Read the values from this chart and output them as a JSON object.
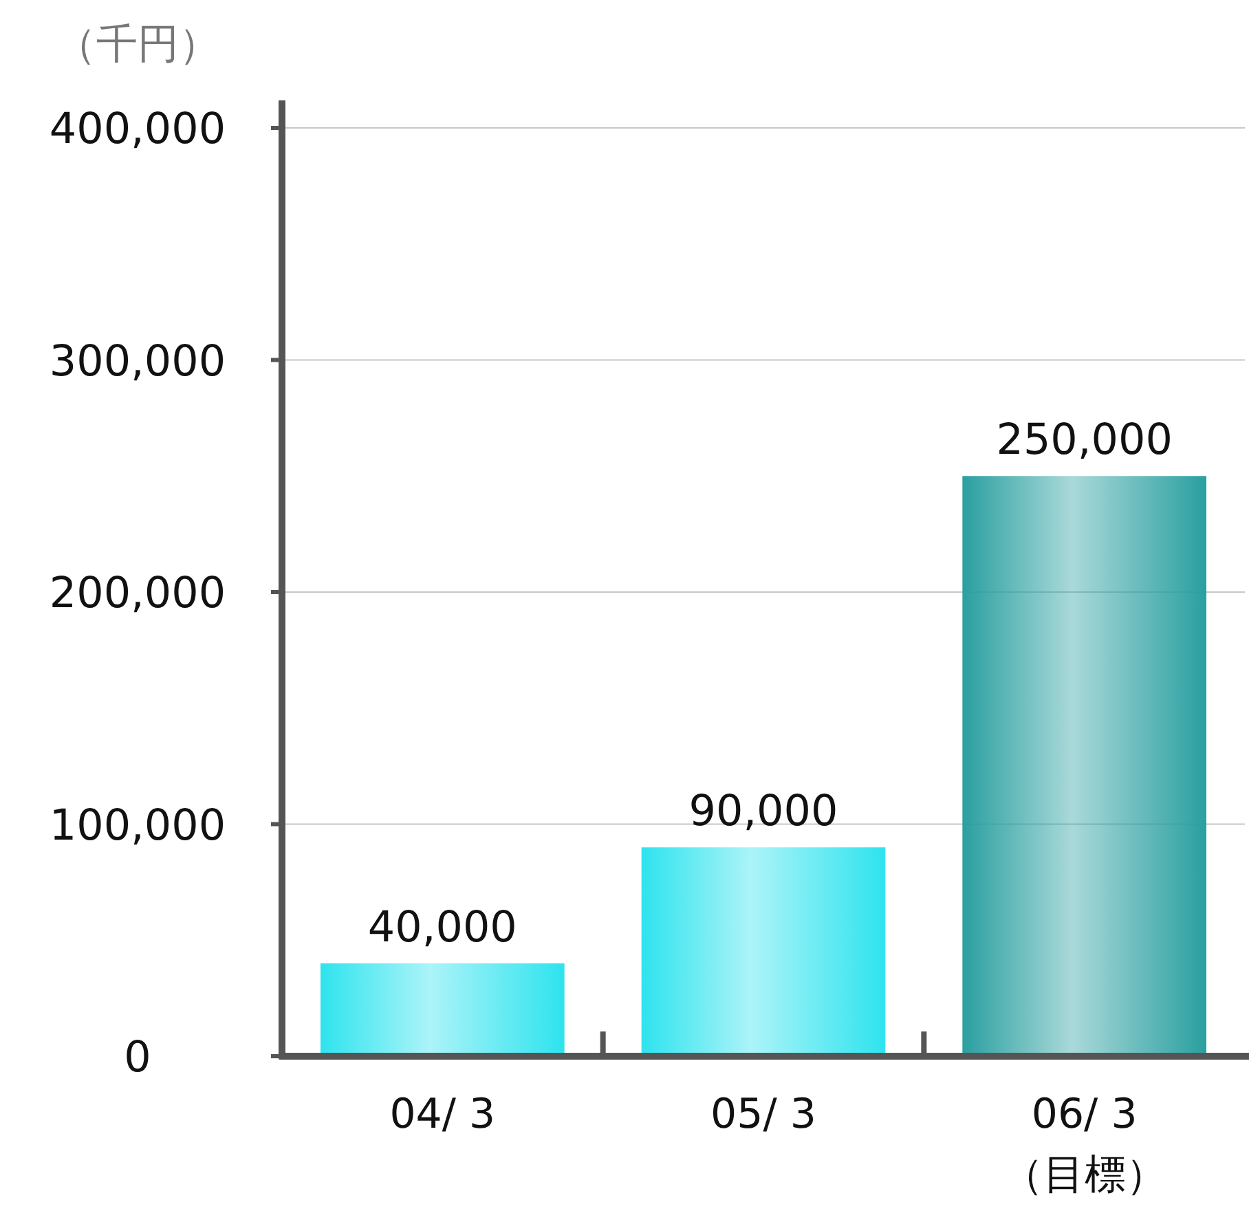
{
  "chart_data": {
    "type": "bar",
    "ylabel": "（千円）",
    "categories": [
      "04/ 3",
      "05/ 3",
      "06/ 3\n（目標）"
    ],
    "values": [
      40000,
      90000,
      250000
    ],
    "colors": [
      "#2ee3ee",
      "#2ee3ee",
      "#2a9fa0"
    ],
    "value_labels": [
      "40,000",
      "90,000",
      "250,000"
    ],
    "ylim": [
      0,
      400000
    ],
    "yticks": [
      0,
      {
        "value": 100000,
        "label": "100,000"
      },
      {
        "value": 200000,
        "label": "200,000"
      },
      {
        "value": 300000,
        "label": "300,000"
      },
      {
        "value": 400000,
        "label": "400,000"
      }
    ],
    "grid": "y"
  }
}
